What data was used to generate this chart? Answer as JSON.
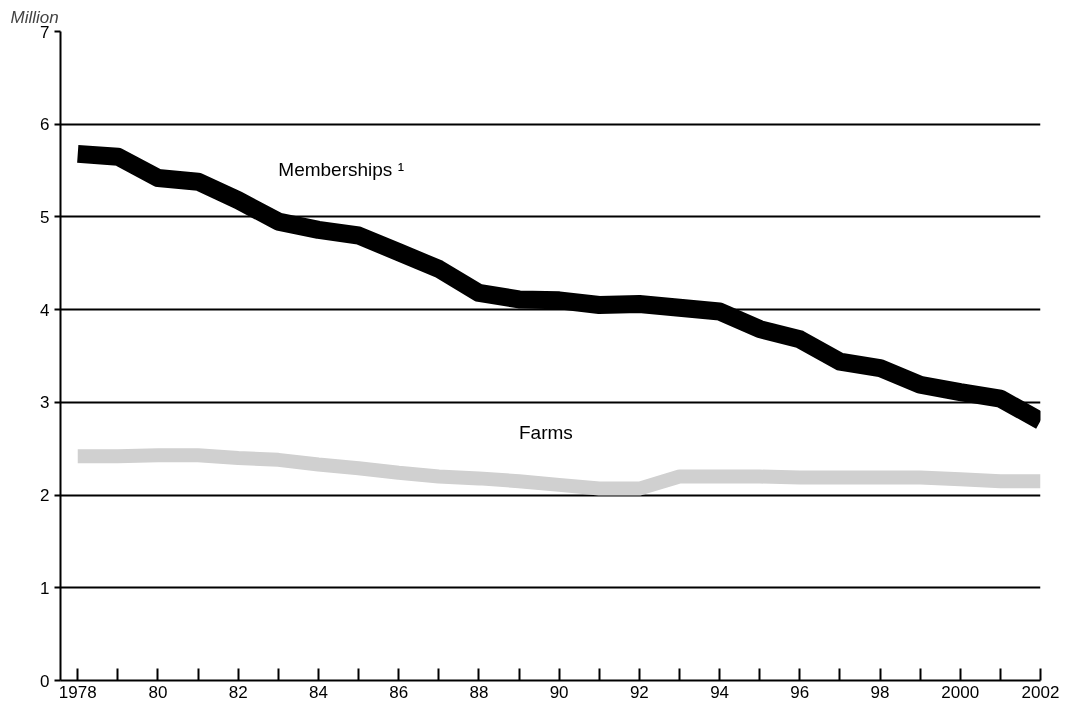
{
  "chart_data": {
    "type": "line",
    "ylabel": "Million",
    "x": [
      1978,
      1979,
      1980,
      1981,
      1982,
      1983,
      1984,
      1985,
      1986,
      1987,
      1988,
      1989,
      1990,
      1991,
      1992,
      1993,
      1994,
      1995,
      1996,
      1997,
      1998,
      1999,
      2000,
      2001,
      2002
    ],
    "series": [
      {
        "name": "Memberships ¹",
        "color": "#000000",
        "values": [
          5.68,
          5.65,
          5.42,
          5.38,
          5.18,
          4.95,
          4.86,
          4.8,
          4.62,
          4.44,
          4.18,
          4.11,
          4.1,
          4.05,
          4.06,
          4.02,
          3.98,
          3.79,
          3.68,
          3.44,
          3.37,
          3.19,
          3.11,
          3.04,
          2.8
        ]
      },
      {
        "name": "Farms",
        "color": "#d0d0d0",
        "values": [
          2.42,
          2.42,
          2.43,
          2.43,
          2.4,
          2.38,
          2.33,
          2.29,
          2.24,
          2.2,
          2.18,
          2.15,
          2.11,
          2.07,
          2.07,
          2.2,
          2.2,
          2.2,
          2.19,
          2.19,
          2.19,
          2.19,
          2.17,
          2.15,
          2.15
        ]
      }
    ],
    "xlim": [
      1977.57,
      2002
    ],
    "ylim": [
      0,
      7
    ],
    "xticks": [
      {
        "value": 1978,
        "label": "1978"
      },
      {
        "value": 1979,
        "label": null
      },
      {
        "value": 1980,
        "label": "80"
      },
      {
        "value": 1981,
        "label": null
      },
      {
        "value": 1982,
        "label": "82"
      },
      {
        "value": 1983,
        "label": null
      },
      {
        "value": 1984,
        "label": "84"
      },
      {
        "value": 1985,
        "label": null
      },
      {
        "value": 1986,
        "label": "86"
      },
      {
        "value": 1987,
        "label": null
      },
      {
        "value": 1988,
        "label": "88"
      },
      {
        "value": 1989,
        "label": null
      },
      {
        "value": 1990,
        "label": "90"
      },
      {
        "value": 1991,
        "label": null
      },
      {
        "value": 1992,
        "label": "92"
      },
      {
        "value": 1993,
        "label": null
      },
      {
        "value": 1994,
        "label": "94"
      },
      {
        "value": 1995,
        "label": null
      },
      {
        "value": 1996,
        "label": "96"
      },
      {
        "value": 1997,
        "label": null
      },
      {
        "value": 1998,
        "label": "98"
      },
      {
        "value": 1999,
        "label": null
      },
      {
        "value": 2000,
        "label": "2000"
      },
      {
        "value": 2001,
        "label": null
      },
      {
        "value": 2002,
        "label": "2002"
      }
    ],
    "yticks": [
      0,
      1,
      2,
      3,
      4,
      5,
      6,
      7
    ],
    "grid": "y",
    "marker": "none",
    "line_style": "solid"
  }
}
